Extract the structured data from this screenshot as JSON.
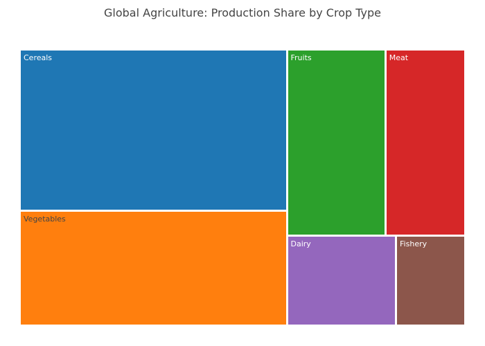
{
  "chart_data": {
    "type": "treemap",
    "title": "Global Agriculture: Production Share by Crop Type",
    "items": [
      {
        "label": "Cereals",
        "value": 35,
        "color": "#1f77b4",
        "text_color": "#ffffff"
      },
      {
        "label": "Vegetables",
        "value": 25,
        "color": "#ff7f0e",
        "text_color": "#444444"
      },
      {
        "label": "Fruits",
        "value": 15,
        "color": "#2ca02c",
        "text_color": "#ffffff"
      },
      {
        "label": "Meat",
        "value": 12,
        "color": "#d62728",
        "text_color": "#ffffff"
      },
      {
        "label": "Dairy",
        "value": 8,
        "color": "#9467bd",
        "text_color": "#ffffff"
      },
      {
        "label": "Fishery",
        "value": 5,
        "color": "#8c564b",
        "text_color": "#ffffff"
      }
    ]
  }
}
